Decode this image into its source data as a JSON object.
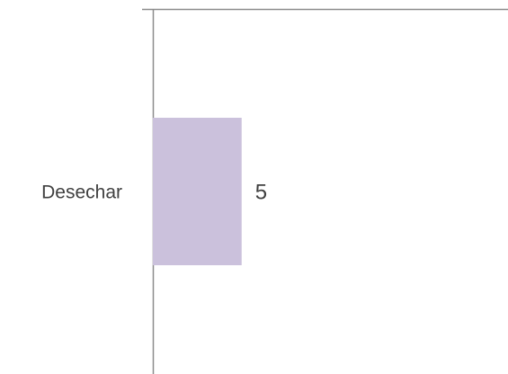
{
  "chart_data": {
    "type": "hbar",
    "categories": [
      "Desechar"
    ],
    "values": [
      5
    ],
    "color": "#cbc1dc",
    "xlim": [
      0,
      20
    ]
  }
}
